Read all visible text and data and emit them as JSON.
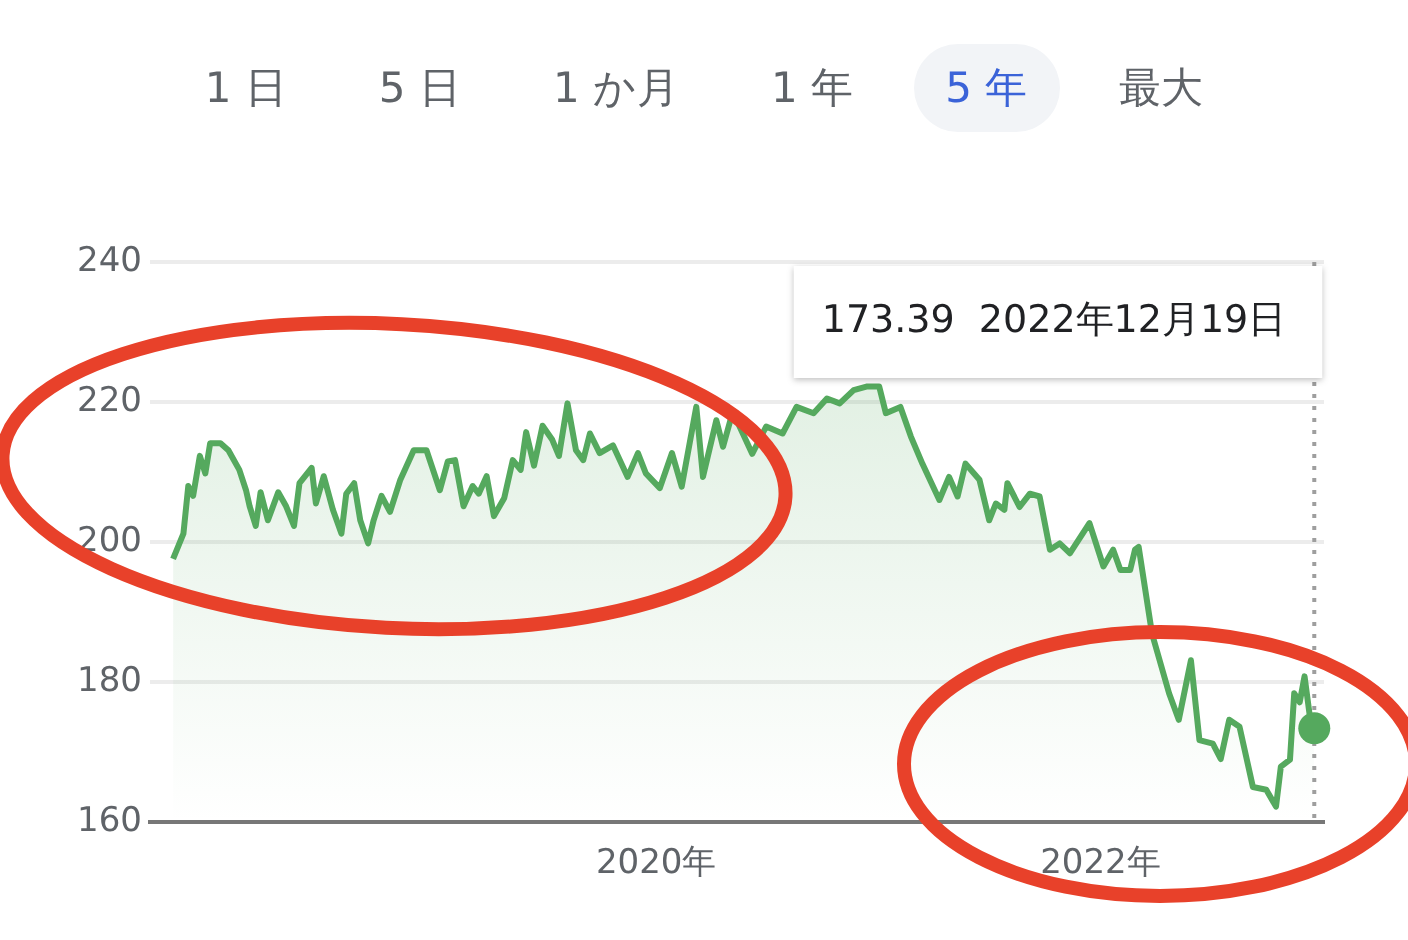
{
  "chart_data": {
    "type": "area",
    "x": [
      "2017-10-28",
      "2017-11-14",
      "2017-11-22",
      "2017-11-30",
      "2017-12-11",
      "2017-12-20",
      "2017-12-28",
      "2018-01-14",
      "2018-01-27",
      "2018-02-14",
      "2018-02-25",
      "2018-03-03",
      "2018-03-13",
      "2018-03-21",
      "2018-04-02",
      "2018-04-19",
      "2018-05-02",
      "2018-05-15",
      "2018-05-24",
      "2018-06-13",
      "2018-06-20",
      "2018-07-03",
      "2018-07-18",
      "2018-08-01",
      "2018-08-09",
      "2018-08-22",
      "2018-09-01",
      "2018-09-14",
      "2018-09-23",
      "2018-10-06",
      "2018-10-20",
      "2018-11-06",
      "2018-11-28",
      "2018-12-19",
      "2019-01-10",
      "2019-01-23",
      "2019-02-04",
      "2019-02-18",
      "2019-03-05",
      "2019-03-15",
      "2019-03-28",
      "2019-04-09",
      "2019-04-26",
      "2019-05-10",
      "2019-05-23",
      "2019-06-01",
      "2019-06-14",
      "2019-06-28",
      "2019-07-14",
      "2019-07-25",
      "2019-08-08",
      "2019-08-22",
      "2019-09-03",
      "2019-09-14",
      "2019-09-30",
      "2019-10-22",
      "2019-11-15",
      "2019-12-02",
      "2019-12-15",
      "2020-01-07",
      "2020-01-27",
      "2020-02-12",
      "2020-03-07",
      "2020-03-18",
      "2020-04-09",
      "2020-04-20",
      "2020-05-06",
      "2020-06-07",
      "2020-06-30",
      "2020-07-27",
      "2020-08-19",
      "2020-09-16",
      "2020-10-08",
      "2020-10-29",
      "2020-11-21",
      "2020-12-12",
      "2021-01-02",
      "2021-01-13",
      "2021-02-06",
      "2021-02-23",
      "2021-03-14",
      "2021-04-11",
      "2021-04-27",
      "2021-05-11",
      "2021-05-24",
      "2021-06-16",
      "2021-07-02",
      "2021-07-13",
      "2021-07-27",
      "2021-08-01",
      "2021-08-21",
      "2021-09-07",
      "2021-09-23",
      "2021-10-10",
      "2021-10-26",
      "2021-11-12",
      "2021-12-14",
      "2022-01-06",
      "2022-01-22",
      "2022-02-03",
      "2022-02-19",
      "2022-02-27",
      "2022-03-05",
      "2022-03-27",
      "2022-04-24",
      "2022-05-10",
      "2022-05-30",
      "2022-06-13",
      "2022-07-05",
      "2022-07-18",
      "2022-08-01",
      "2022-08-18",
      "2022-09-09",
      "2022-10-01",
      "2022-10-17",
      "2022-10-25",
      "2022-11-09",
      "2022-11-16",
      "2022-11-25",
      "2022-12-03",
      "2022-12-14",
      "2022-12-19"
    ],
    "series": [
      {
        "color": "#55a95e",
        "values": [
          197.6,
          201.2,
          208,
          206.6,
          212.3,
          209.8,
          214.1,
          214.1,
          213.1,
          210.3,
          207.4,
          205.1,
          202.3,
          207.1,
          203.1,
          207.1,
          205.1,
          202.3,
          208.4,
          210.6,
          205.5,
          209.4,
          204.6,
          201.2,
          206.9,
          208.4,
          203.1,
          199.8,
          203.1,
          206.6,
          204.3,
          208.9,
          213.1,
          213.1,
          207.4,
          211.5,
          211.7,
          205.1,
          208,
          206.9,
          209.4,
          203.7,
          206.3,
          211.7,
          210.3,
          215.7,
          210.9,
          216.6,
          214.6,
          212.3,
          219.8,
          213.1,
          211.7,
          215.5,
          212.7,
          213.8,
          209.3,
          212.7,
          209.8,
          207.7,
          212.7,
          207.9,
          219.3,
          209.3,
          217.4,
          213.6,
          218.6,
          212.6,
          216.5,
          215.5,
          219.3,
          218.4,
          220.5,
          219.8,
          221.7,
          222.2,
          222.2,
          218.4,
          219.3,
          215.1,
          211.2,
          206,
          209.3,
          206.5,
          211.2,
          208.9,
          203.1,
          205.5,
          204.6,
          208.4,
          205,
          206.9,
          206.5,
          198.9,
          199.8,
          198.4,
          202.7,
          196.5,
          198.9,
          196,
          196,
          198.9,
          199.3,
          186.9,
          178.4,
          174.6,
          183.1,
          171.7,
          171.2,
          169,
          174.6,
          173.6,
          165,
          164.6,
          162.2,
          167.9,
          168.9,
          178.4,
          177.1,
          180.8,
          173.6,
          173.39
        ]
      }
    ],
    "xlim": [
      "2017-09-20",
      "2023-01-04"
    ],
    "xticks": [
      {
        "value": "2020-01-01",
        "label": "2020年"
      },
      {
        "value": "2022-01-01",
        "label": "2022年"
      }
    ],
    "ylim": [
      160,
      240
    ],
    "yticks": [
      160,
      180,
      200,
      220,
      240
    ],
    "grid": "y",
    "legend": false,
    "marker": "none",
    "line_style": "solid",
    "ref_lines": [
      {
        "axis": "x",
        "value": "2022-12-19",
        "label": "173.39  2022年12月19日",
        "line_style": "dotted",
        "color": "#9e9e9e"
      }
    ],
    "annotations": [
      "1 日",
      "5 日",
      "1 か月",
      "1 年",
      "5 年",
      "最大"
    ]
  }
}
